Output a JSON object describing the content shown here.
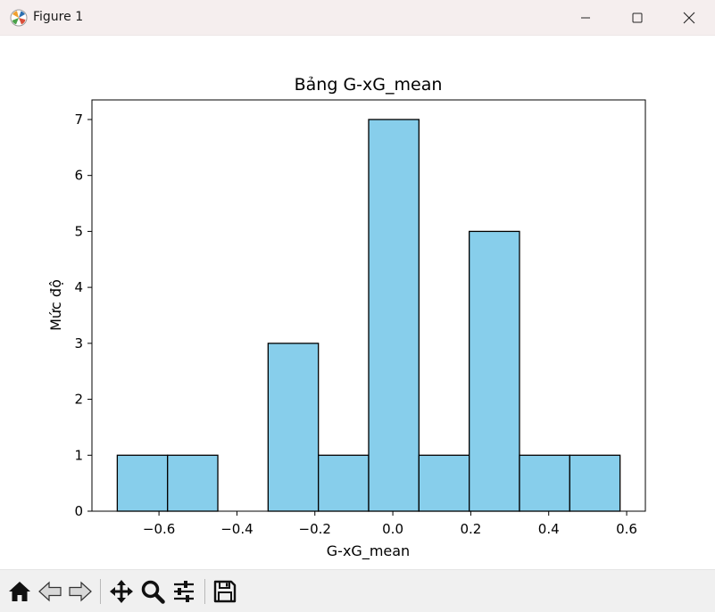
{
  "window": {
    "title": "Figure 1",
    "icons": {
      "app": "matplotlib-icon",
      "minimize": "minimize-icon",
      "maximize": "maximize-icon",
      "close": "close-icon"
    }
  },
  "toolbar": {
    "tools": [
      {
        "name": "home-icon",
        "label": "Home"
      },
      {
        "name": "back-icon",
        "label": "Back"
      },
      {
        "name": "forward-icon",
        "label": "Forward"
      },
      {
        "name": "pan-icon",
        "label": "Pan"
      },
      {
        "name": "zoom-icon",
        "label": "Zoom"
      },
      {
        "name": "configure-subplots-icon",
        "label": "Configure subplots"
      },
      {
        "name": "save-icon",
        "label": "Save"
      }
    ]
  },
  "chart_data": {
    "type": "bar",
    "title": "Bảng G-xG_mean",
    "xlabel": "G-xG_mean",
    "ylabel": "Mức độ",
    "bin_edges": [
      -0.707,
      -0.578,
      -0.449,
      -0.32,
      -0.191,
      -0.062,
      0.067,
      0.196,
      0.325,
      0.454,
      0.583
    ],
    "values": [
      1,
      1,
      0,
      3,
      1,
      7,
      1,
      5,
      1,
      1
    ],
    "xlim": [
      -0.772,
      0.648
    ],
    "ylim": [
      0,
      7.35
    ],
    "x_ticks": [
      -0.6,
      -0.4,
      -0.2,
      0.0,
      0.2,
      0.4,
      0.6
    ],
    "x_tick_labels": [
      "−0.6",
      "−0.4",
      "−0.2",
      "0.0",
      "0.2",
      "0.4",
      "0.6"
    ],
    "y_ticks": [
      0,
      1,
      2,
      3,
      4,
      5,
      6,
      7
    ],
    "y_tick_labels": [
      "0",
      "1",
      "2",
      "3",
      "4",
      "5",
      "6",
      "7"
    ],
    "bar_color": "#87ceeb",
    "edge_color": "#000000",
    "grid": false,
    "legend": false
  }
}
